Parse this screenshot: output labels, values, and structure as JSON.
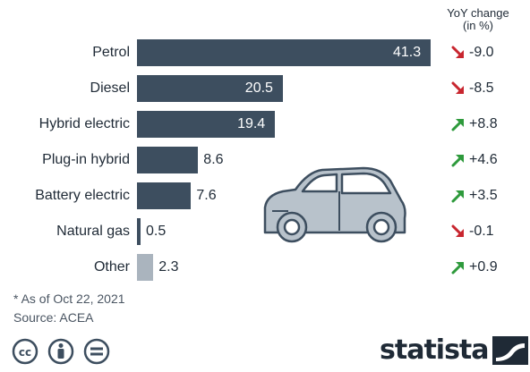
{
  "chart_data": {
    "type": "bar",
    "orientation": "horizontal",
    "categories": [
      "Petrol",
      "Diesel",
      "Hybrid electric",
      "Plug-in hybrid",
      "Battery electric",
      "Natural gas",
      "Other"
    ],
    "values": [
      41.3,
      20.5,
      19.4,
      8.6,
      7.6,
      0.5,
      2.3
    ],
    "value_labels": [
      "41.3",
      "20.5",
      "19.4",
      "8.6",
      "7.6",
      "0.5",
      "2.3"
    ],
    "bar_colors": [
      "#3d4e5f",
      "#3d4e5f",
      "#3d4e5f",
      "#3d4e5f",
      "#3d4e5f",
      "#3d4e5f",
      "#aab4be"
    ],
    "yoy_header": [
      "YoY change",
      "(in %)"
    ],
    "yoy_changes": [
      {
        "text": "-9.0",
        "value": -9.0,
        "direction": "down"
      },
      {
        "text": "-8.5",
        "value": -8.5,
        "direction": "down"
      },
      {
        "text": "+8.8",
        "value": 8.8,
        "direction": "up"
      },
      {
        "text": "+4.6",
        "value": 4.6,
        "direction": "up"
      },
      {
        "text": "+3.5",
        "value": 3.5,
        "direction": "up"
      },
      {
        "text": "-0.1",
        "value": -0.1,
        "direction": "down"
      },
      {
        "text": "+0.9",
        "value": 0.9,
        "direction": "up"
      }
    ],
    "xlim": [
      0,
      41.3
    ],
    "grid": false,
    "title": "",
    "xlabel": "",
    "ylabel": ""
  },
  "colors": {
    "bar": "#3d4e5f",
    "bar_other": "#aab4be",
    "down_arrow": "#c8262f",
    "up_arrow": "#2e9a3c",
    "text": "#1f2a36",
    "car_body": "#b8c2cb",
    "car_outline": "#3d4e5f"
  },
  "footnote": "* As of Oct 22, 2021",
  "source": "Source: ACEA",
  "brand": {
    "name": "statista",
    "icon": "statista-logo-icon"
  },
  "license_icons": [
    "creative-commons-icon",
    "attribution-icon",
    "no-derivatives-icon"
  ],
  "decoration_icon": "car-icon"
}
